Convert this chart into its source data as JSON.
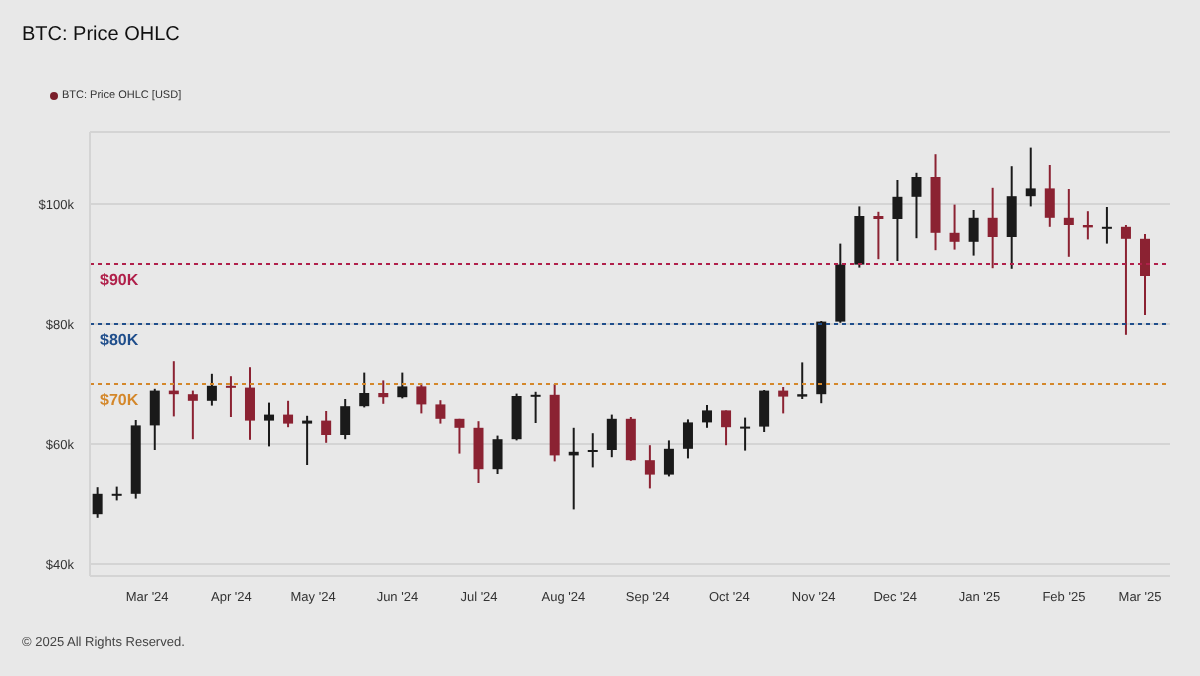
{
  "chart_data": {
    "type": "candlestick",
    "title": "BTC: Price OHLC",
    "x": [
      "2024-02-12",
      "2024-02-19",
      "2024-02-26",
      "2024-03-04",
      "2024-03-11",
      "2024-03-18",
      "2024-03-25",
      "2024-04-01",
      "2024-04-08",
      "2024-04-15",
      "2024-04-22",
      "2024-04-29",
      "2024-05-06",
      "2024-05-13",
      "2024-05-20",
      "2024-05-27",
      "2024-06-03",
      "2024-06-10",
      "2024-06-17",
      "2024-06-24",
      "2024-07-01",
      "2024-07-08",
      "2024-07-15",
      "2024-07-22",
      "2024-07-29",
      "2024-08-05",
      "2024-08-12",
      "2024-08-19",
      "2024-08-26",
      "2024-09-02",
      "2024-09-09",
      "2024-09-16",
      "2024-09-23",
      "2024-09-30",
      "2024-10-07",
      "2024-10-14",
      "2024-10-21",
      "2024-10-28",
      "2024-11-04",
      "2024-11-11",
      "2024-11-18",
      "2024-11-25",
      "2024-12-02",
      "2024-12-09",
      "2024-12-16",
      "2024-12-23",
      "2024-12-30",
      "2025-01-06",
      "2025-01-13",
      "2025-01-20",
      "2025-01-27",
      "2025-02-03",
      "2025-02-10",
      "2025-02-17",
      "2025-02-24",
      "2025-03-03"
    ],
    "series": [
      {
        "name": "BTC: Price OHLC [USD]",
        "color": "#7a1f2b",
        "ohlc": [
          [
            48300,
            52800,
            47700,
            51700
          ],
          [
            51700,
            52900,
            50600,
            51700
          ],
          [
            51700,
            64000,
            50900,
            63100
          ],
          [
            63100,
            69200,
            59000,
            68900
          ],
          [
            68900,
            73800,
            64600,
            68300
          ],
          [
            68300,
            68900,
            60800,
            67200
          ],
          [
            67200,
            71700,
            66400,
            69700
          ],
          [
            69700,
            71300,
            64500,
            69400
          ],
          [
            69400,
            72800,
            60700,
            63900
          ],
          [
            63900,
            66900,
            59600,
            64900
          ],
          [
            64900,
            67200,
            62800,
            63400
          ],
          [
            63400,
            64700,
            56500,
            63900
          ],
          [
            63900,
            65500,
            60200,
            61500
          ],
          [
            61500,
            67500,
            60800,
            66300
          ],
          [
            66300,
            71900,
            66100,
            68500
          ],
          [
            68500,
            70600,
            66700,
            67800
          ],
          [
            67800,
            71900,
            67600,
            69600
          ],
          [
            69600,
            70100,
            65100,
            66600
          ],
          [
            66600,
            67300,
            63400,
            64200
          ],
          [
            64200,
            64200,
            58400,
            62700
          ],
          [
            62700,
            63800,
            53500,
            55800
          ],
          [
            55800,
            61400,
            55000,
            60800
          ],
          [
            60800,
            68400,
            60600,
            68000
          ],
          [
            68000,
            68700,
            63500,
            68200
          ],
          [
            68200,
            70000,
            57100,
            58100
          ],
          [
            58100,
            62700,
            49100,
            58700
          ],
          [
            58700,
            61800,
            56100,
            59000
          ],
          [
            59000,
            64900,
            57800,
            64200
          ],
          [
            64200,
            64500,
            57200,
            57300
          ],
          [
            57300,
            59800,
            52600,
            54900
          ],
          [
            54900,
            60600,
            54600,
            59200
          ],
          [
            59200,
            64100,
            57600,
            63600
          ],
          [
            63600,
            66500,
            62700,
            65600
          ],
          [
            65600,
            65600,
            59800,
            62800
          ],
          [
            62800,
            64400,
            58900,
            62900
          ],
          [
            62900,
            69000,
            62000,
            68900
          ],
          [
            68900,
            69500,
            65100,
            67900
          ],
          [
            67900,
            73600,
            67500,
            68300
          ],
          [
            68300,
            80500,
            66800,
            80400
          ],
          [
            80400,
            93400,
            80200,
            89900
          ],
          [
            89900,
            99600,
            89400,
            98000
          ],
          [
            98000,
            98700,
            90800,
            97500
          ],
          [
            97500,
            104000,
            90500,
            101200
          ],
          [
            101200,
            105200,
            94300,
            104500
          ],
          [
            104500,
            108300,
            92300,
            95200
          ],
          [
            95200,
            99900,
            92400,
            93700
          ],
          [
            93700,
            99000,
            91400,
            97700
          ],
          [
            97700,
            102700,
            89300,
            94500
          ],
          [
            94500,
            106300,
            89200,
            101300
          ],
          [
            101300,
            109400,
            99600,
            102600
          ],
          [
            102600,
            106500,
            96200,
            97700
          ],
          [
            97700,
            102500,
            91200,
            96500
          ],
          [
            96500,
            98800,
            94100,
            96100
          ],
          [
            96100,
            99500,
            93400,
            96200
          ],
          [
            96200,
            96500,
            78200,
            94200
          ],
          [
            94200,
            95000,
            81500,
            88000
          ]
        ],
        "colors": [
          "#1a1a1a",
          "#1a1a1a",
          "#1a1a1a",
          "#1a1a1a",
          "#8b2232",
          "#8b2232",
          "#1a1a1a",
          "#8b2232",
          "#8b2232",
          "#1a1a1a",
          "#8b2232",
          "#1a1a1a",
          "#8b2232",
          "#1a1a1a",
          "#1a1a1a",
          "#8b2232",
          "#1a1a1a",
          "#8b2232",
          "#8b2232",
          "#8b2232",
          "#8b2232",
          "#1a1a1a",
          "#1a1a1a",
          "#1a1a1a",
          "#8b2232",
          "#1a1a1a",
          "#1a1a1a",
          "#1a1a1a",
          "#8b2232",
          "#8b2232",
          "#1a1a1a",
          "#1a1a1a",
          "#1a1a1a",
          "#8b2232",
          "#1a1a1a",
          "#1a1a1a",
          "#8b2232",
          "#1a1a1a",
          "#1a1a1a",
          "#1a1a1a",
          "#1a1a1a",
          "#8b2232",
          "#1a1a1a",
          "#1a1a1a",
          "#8b2232",
          "#8b2232",
          "#1a1a1a",
          "#8b2232",
          "#1a1a1a",
          "#1a1a1a",
          "#8b2232",
          "#8b2232",
          "#8b2232",
          "#1a1a1a",
          "#8b2232",
          "#8b2232"
        ]
      }
    ],
    "xlim": [
      "2024-02-09",
      "2025-03-12"
    ],
    "xticks": [
      {
        "value": "2024-03-01",
        "label": "Mar '24"
      },
      {
        "value": "2024-04-01",
        "label": "Apr '24"
      },
      {
        "value": "2024-05-01",
        "label": "May '24"
      },
      {
        "value": "2024-06-01",
        "label": "Jun '24"
      },
      {
        "value": "2024-07-01",
        "label": "Jul '24"
      },
      {
        "value": "2024-08-01",
        "label": "Aug '24"
      },
      {
        "value": "2024-09-01",
        "label": "Sep '24"
      },
      {
        "value": "2024-10-01",
        "label": "Oct '24"
      },
      {
        "value": "2024-11-01",
        "label": "Nov '24"
      },
      {
        "value": "2024-12-01",
        "label": "Dec '24"
      },
      {
        "value": "2025-01-01",
        "label": "Jan '25"
      },
      {
        "value": "2025-02-01",
        "label": "Feb '25"
      },
      {
        "value": "2025-03-01",
        "label": "Mar '25"
      }
    ],
    "ylim": [
      38000,
      112000
    ],
    "yticks": [
      {
        "value": 40000,
        "label": "$40k"
      },
      {
        "value": 60000,
        "label": "$60k"
      },
      {
        "value": 80000,
        "label": "$80k"
      },
      {
        "value": 100000,
        "label": "$100k"
      }
    ],
    "ref_lines": [
      {
        "axis": "y",
        "value": 90000,
        "label": "$90K",
        "color": "#b0204a",
        "line_style": "dotted"
      },
      {
        "axis": "y",
        "value": 80000,
        "label": "$80K",
        "color": "#1f4e8c",
        "line_style": "dotted"
      },
      {
        "axis": "y",
        "value": 70000,
        "label": "$70K",
        "color": "#d4872a",
        "line_style": "dotted"
      }
    ],
    "grid": "y",
    "legend": "top left",
    "annotations": [
      "© 2025 All Rights Reserved."
    ]
  }
}
